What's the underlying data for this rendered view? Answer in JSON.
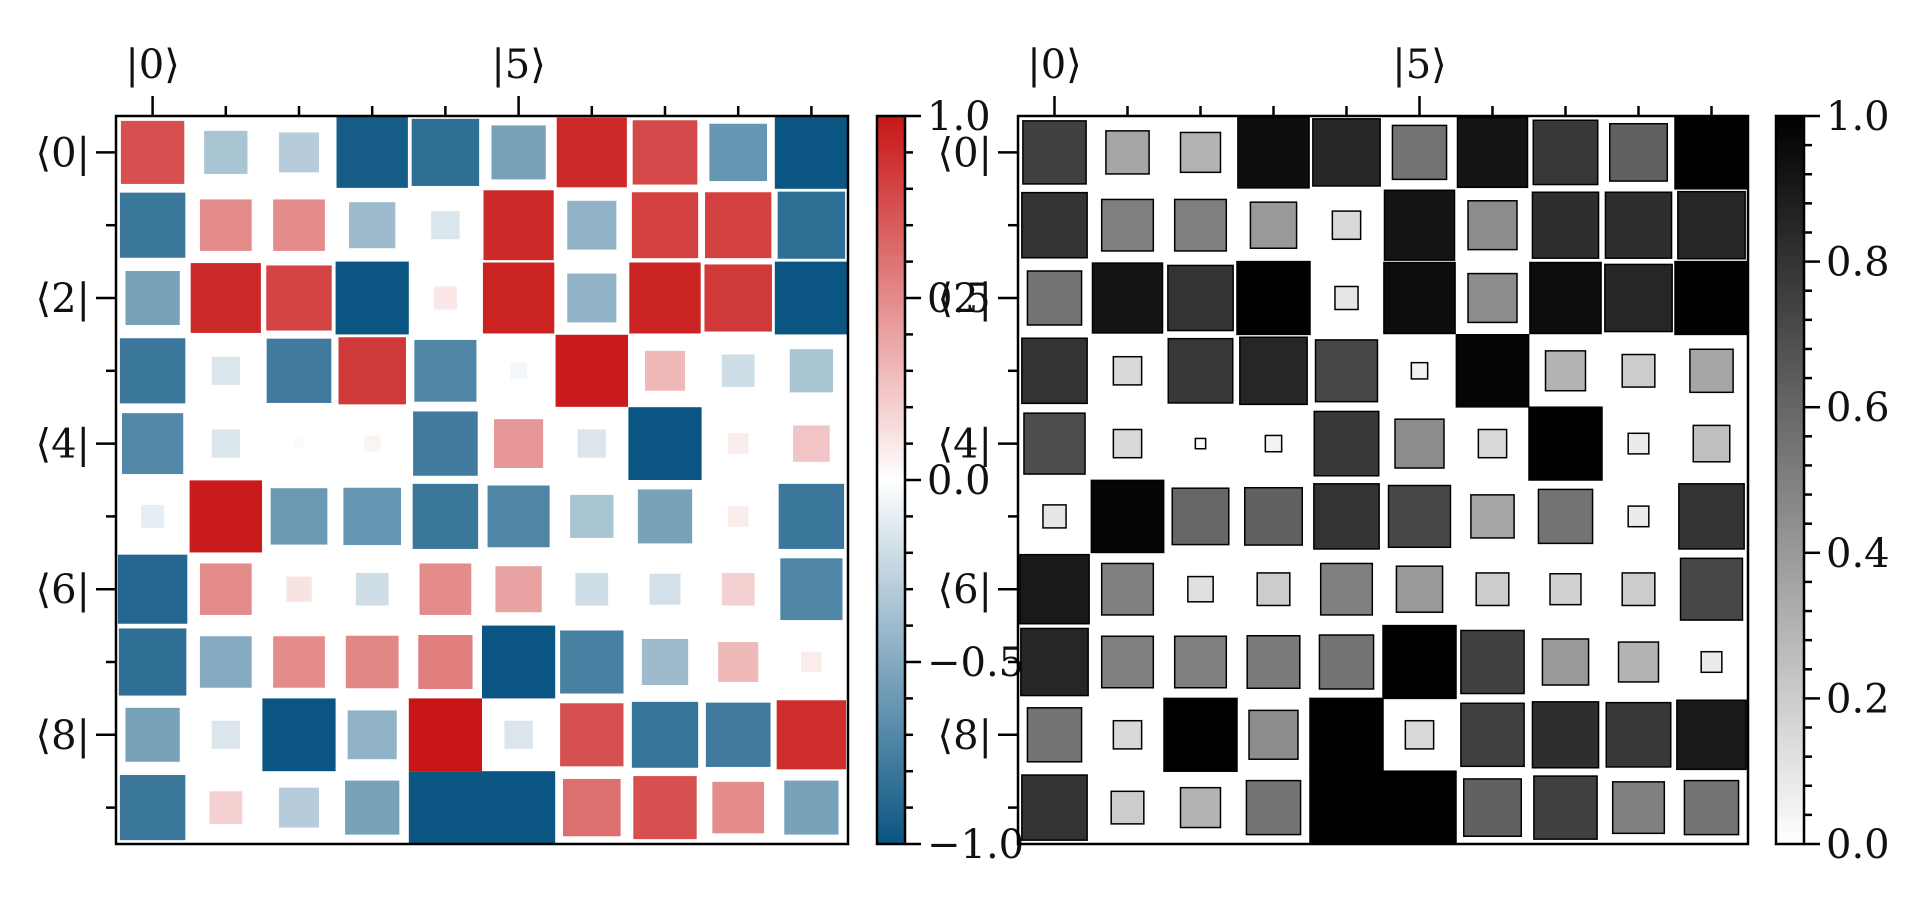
{
  "chart_data": [
    {
      "type": "heatmap",
      "title": "",
      "encoding": "hinton-diverging",
      "colormap": "RdBu_r",
      "top_tick_labels": [
        "|0⟩",
        "|5⟩"
      ],
      "left_tick_labels": [
        "⟨0|",
        "⟨2|",
        "⟨4|",
        "⟨6|",
        "⟨8|"
      ],
      "colorbar": {
        "range": [
          -1.0,
          1.0
        ],
        "tick_labels": [
          "1.0",
          "0.5",
          "0.0",
          "−0.5",
          "−1.0"
        ]
      },
      "values": [
        [
          0.75,
          -0.35,
          -0.3,
          -0.95,
          -0.85,
          -0.55,
          0.92,
          0.78,
          -0.62,
          -1.0
        ],
        [
          -0.8,
          0.5,
          0.5,
          -0.4,
          -0.15,
          0.92,
          -0.45,
          0.82,
          0.82,
          -0.85
        ],
        [
          -0.55,
          0.92,
          0.8,
          -1.0,
          0.1,
          0.95,
          -0.45,
          0.95,
          0.85,
          -1.0
        ],
        [
          -0.8,
          -0.15,
          -0.78,
          0.85,
          -0.72,
          -0.05,
          0.98,
          0.3,
          -0.2,
          -0.35
        ],
        [
          -0.7,
          -0.15,
          -0.02,
          0.05,
          -0.78,
          0.45,
          -0.15,
          -1.0,
          0.08,
          0.25
        ],
        [
          -0.1,
          0.98,
          -0.6,
          -0.62,
          -0.8,
          -0.72,
          -0.35,
          -0.55,
          0.08,
          -0.8
        ],
        [
          -0.9,
          0.5,
          0.12,
          -0.2,
          0.5,
          0.4,
          -0.2,
          -0.18,
          0.2,
          -0.72
        ],
        [
          -0.85,
          -0.5,
          0.5,
          0.52,
          0.55,
          -1.0,
          -0.75,
          -0.4,
          0.3,
          0.08
        ],
        [
          -0.55,
          -0.15,
          -1.0,
          -0.45,
          1.0,
          -0.15,
          0.75,
          -0.82,
          -0.78,
          0.9
        ],
        [
          -0.8,
          0.2,
          -0.3,
          -0.55,
          -1.0,
          -1.0,
          0.62,
          0.75,
          0.5,
          -0.55
        ]
      ]
    },
    {
      "type": "heatmap",
      "title": "",
      "encoding": "hinton-magnitude",
      "colormap": "Greys",
      "top_tick_labels": [
        "|0⟩",
        "|5⟩"
      ],
      "left_tick_labels": [
        "⟨0|",
        "⟨2|",
        "⟨4|",
        "⟨6|",
        "⟨8|"
      ],
      "colorbar": {
        "range": [
          0.0,
          1.0
        ],
        "tick_labels": [
          "1.0",
          "0.8",
          "0.6",
          "0.4",
          "0.2",
          "0.0"
        ]
      },
      "values": [
        [
          0.75,
          0.35,
          0.3,
          0.95,
          0.85,
          0.55,
          0.92,
          0.78,
          0.62,
          1.0
        ],
        [
          0.8,
          0.5,
          0.5,
          0.4,
          0.15,
          0.92,
          0.45,
          0.82,
          0.82,
          0.85
        ],
        [
          0.55,
          0.92,
          0.8,
          1.0,
          0.1,
          0.95,
          0.45,
          0.95,
          0.85,
          1.0
        ],
        [
          0.8,
          0.15,
          0.78,
          0.85,
          0.72,
          0.05,
          0.98,
          0.3,
          0.2,
          0.35
        ],
        [
          0.7,
          0.15,
          0.02,
          0.05,
          0.78,
          0.45,
          0.15,
          1.0,
          0.08,
          0.25
        ],
        [
          0.1,
          0.98,
          0.6,
          0.62,
          0.8,
          0.72,
          0.35,
          0.55,
          0.08,
          0.8
        ],
        [
          0.9,
          0.5,
          0.12,
          0.2,
          0.5,
          0.4,
          0.2,
          0.18,
          0.2,
          0.72
        ],
        [
          0.85,
          0.5,
          0.5,
          0.52,
          0.55,
          1.0,
          0.75,
          0.4,
          0.3,
          0.08
        ],
        [
          0.55,
          0.15,
          1.0,
          0.45,
          1.0,
          0.15,
          0.75,
          0.82,
          0.78,
          0.9
        ],
        [
          0.8,
          0.2,
          0.3,
          0.55,
          1.0,
          1.0,
          0.62,
          0.75,
          0.5,
          0.55
        ]
      ]
    }
  ]
}
